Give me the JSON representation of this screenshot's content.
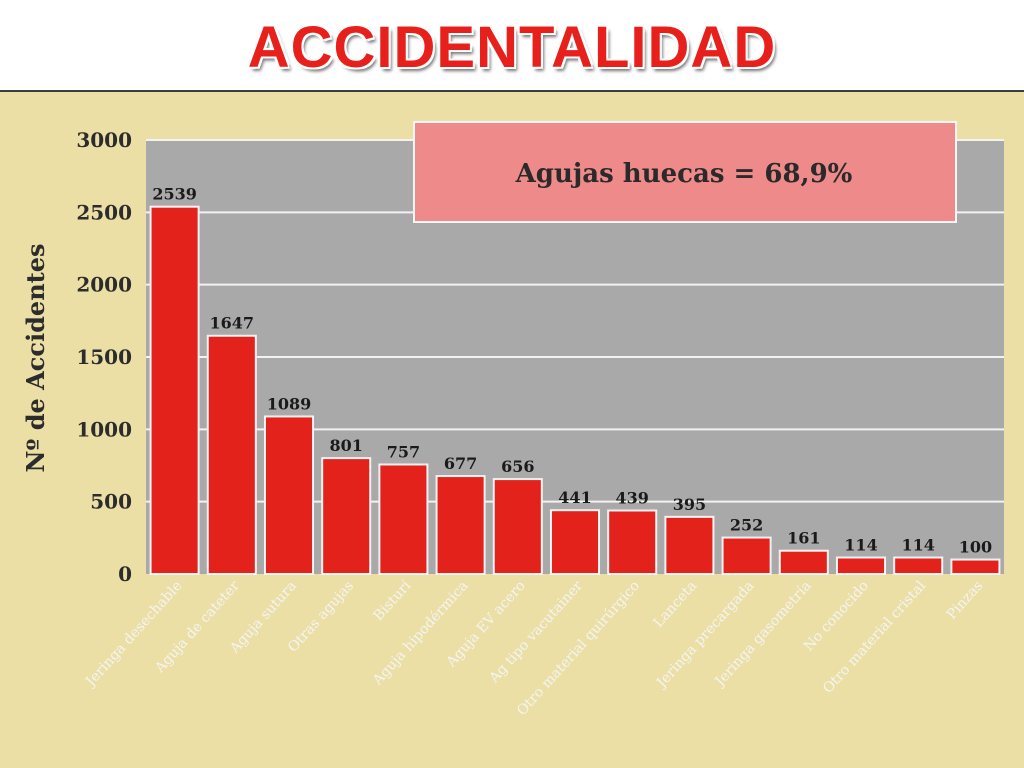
{
  "slide": {
    "title": "ACCIDENTALIDAD"
  },
  "chart_data": {
    "type": "bar",
    "title": "",
    "xlabel": "",
    "ylabel": "Nº de Accidentes",
    "ylim": [
      0,
      3000
    ],
    "yticks": [
      0,
      500,
      1000,
      1500,
      2000,
      2500,
      3000
    ],
    "grid": true,
    "annotation": "Agujas huecas =  68,9%",
    "categories": [
      "Jeringa desechable",
      "Aguja de cateter",
      "Aguja sutura",
      "Otras agujas",
      "Bisturí",
      "Aguja hipodérmica",
      "Aguja EV acero",
      "Ag tipo vacutainer",
      "Otro material quirúrgico",
      "Lanceta",
      "Jeringa precargada",
      "Jeringa gasometría",
      "No conocido",
      "Otro material cristal",
      "Pinzas"
    ],
    "values": [
      2539,
      1647,
      1089,
      801,
      757,
      677,
      656,
      441,
      439,
      395,
      252,
      161,
      114,
      114,
      100
    ],
    "colors": {
      "bar": "#e3221c",
      "plot_background": "#a9a9a9",
      "panel_background": "#ebdfa6",
      "annotation_fill": "#ef8a8a",
      "title": "#e8201c"
    }
  }
}
